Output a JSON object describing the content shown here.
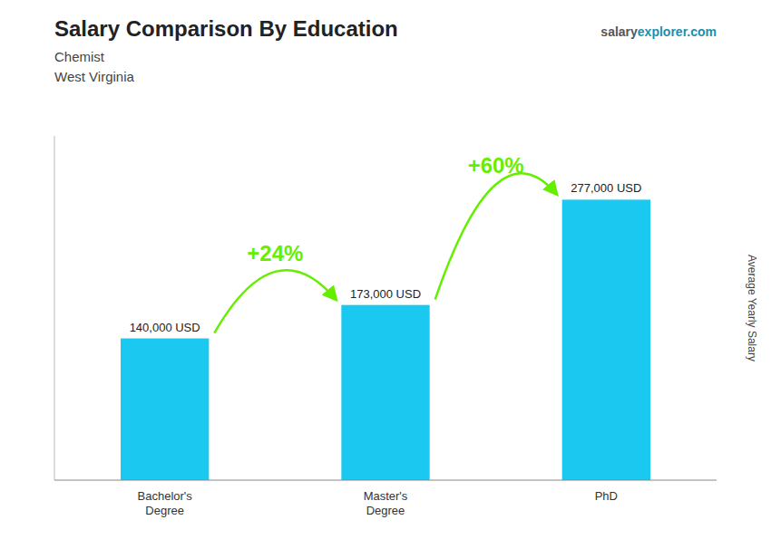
{
  "chart_data": {
    "type": "bar",
    "title": "Salary Comparison By Education",
    "subtitle": [
      "Chemist",
      "West Virginia"
    ],
    "website": [
      "salary",
      "explorer",
      ".com"
    ],
    "ylabel": "Average Yearly Salary",
    "categories": [
      "Bachelor's\nDegree",
      "Master's\nDegree",
      "PhD"
    ],
    "values": [
      140000,
      173000,
      277000
    ],
    "value_labels": [
      "140,000 USD",
      "173,000 USD",
      "277,000 USD"
    ],
    "data_labels": true,
    "color": "#1BC8F0",
    "annotations": [
      {
        "text": "+24%",
        "color": "#66EE00"
      },
      {
        "text": "+60%",
        "color": "#66EE00"
      }
    ],
    "ylim": [
      0,
      340000
    ],
    "tick_labels": "x"
  }
}
